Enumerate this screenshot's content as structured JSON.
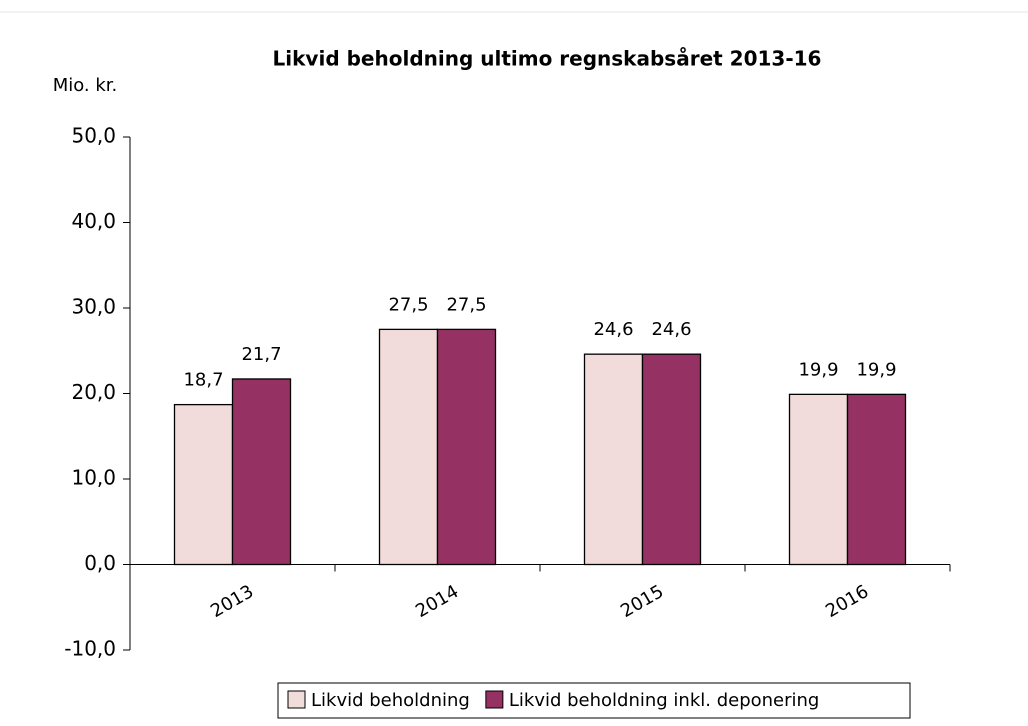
{
  "chart_data": {
    "type": "bar",
    "title": "Likvid beholdning ultimo regnskabsåret 2013-16",
    "y_label": "Mio. kr.",
    "categories": [
      "2013",
      "2014",
      "2015",
      "2016"
    ],
    "series": [
      {
        "name": "Likvid beholdning",
        "color": "#f2dcdb",
        "values": [
          18.7,
          27.5,
          24.6,
          19.9
        ],
        "value_labels": [
          "18,7",
          "27,5",
          "24,6",
          "19,9"
        ]
      },
      {
        "name": "Likvid beholdning inkl. deponering",
        "color": "#953163",
        "values": [
          21.7,
          27.5,
          24.6,
          19.9
        ],
        "value_labels": [
          "21,7",
          "27,5",
          "24,6",
          "19,9"
        ]
      }
    ],
    "ylim": [
      -10,
      50
    ],
    "yticks": [
      {
        "value": -10,
        "label": "-10,0"
      },
      {
        "value": 0,
        "label": "0,0"
      },
      {
        "value": 10,
        "label": "10,0"
      },
      {
        "value": 20,
        "label": "20,0"
      },
      {
        "value": 30,
        "label": "30,0"
      },
      {
        "value": 40,
        "label": "40,0"
      },
      {
        "value": 50,
        "label": "50,0"
      }
    ],
    "grid": false,
    "legend": "bottom"
  }
}
